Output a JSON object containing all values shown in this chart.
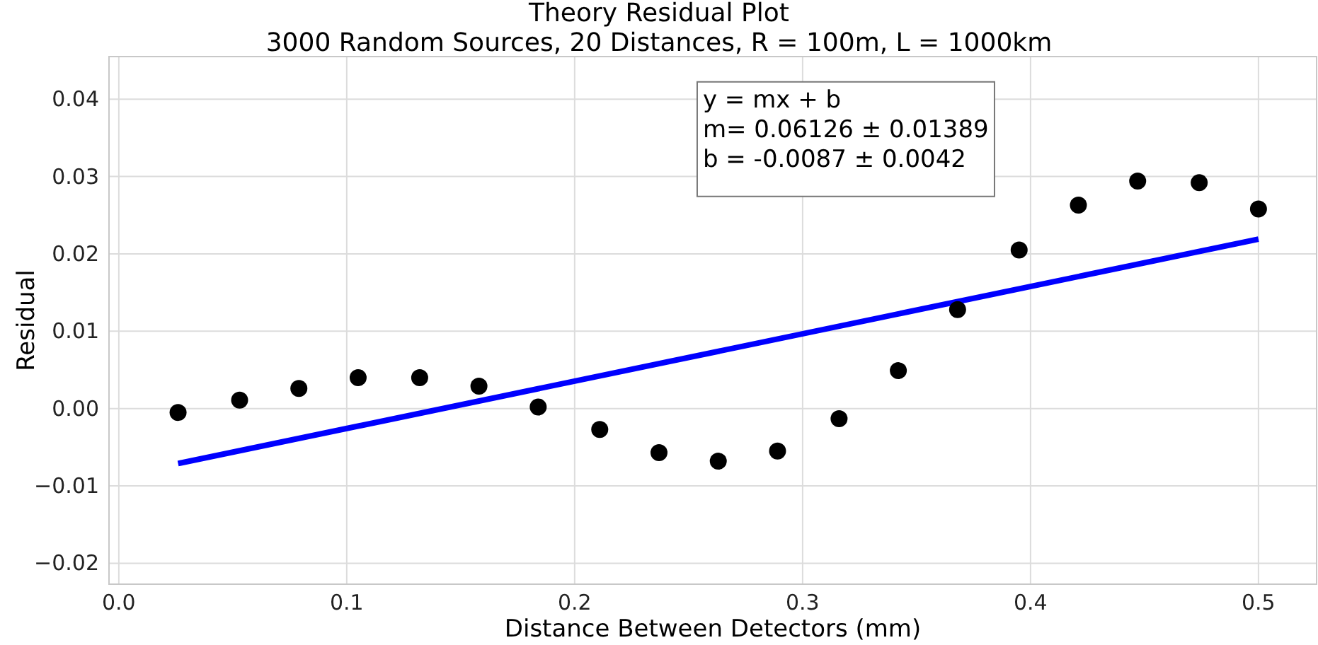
{
  "chart_data": {
    "type": "scatter",
    "title": "Theory Residual Plot",
    "subtitle": "3000 Random Sources, 20 Distances, R = 100m, L = 1000km",
    "xlabel": "Distance Between Detectors (mm)",
    "ylabel": "Residual",
    "xlim": [
      -0.0043,
      0.5255
    ],
    "ylim": [
      -0.0227,
      0.0455
    ],
    "xticks": [
      {
        "value": 0,
        "label": "0.0"
      },
      0.1,
      0.2,
      0.3,
      0.4,
      0.5
    ],
    "yticks": [
      {
        "value": -0.02,
        "label": "−0.02"
      },
      {
        "value": -0.01,
        "label": "−0.01"
      },
      {
        "value": 0,
        "label": "0.00"
      },
      {
        "value": 0.01,
        "label": "0.01"
      },
      {
        "value": 0.02,
        "label": "0.02"
      },
      {
        "value": 0.03,
        "label": "0.03"
      },
      {
        "value": 0.04,
        "label": "0.04"
      }
    ],
    "grid": true,
    "annotations": [
      "y = mx + b",
      "m= 0.06126 ± 0.01389",
      "b = -0.0087 ± 0.0042"
    ],
    "series": [
      {
        "marker": "circle",
        "color": "#000000",
        "x": [
          0.026,
          0.053,
          0.079,
          0.105,
          0.132,
          0.158,
          0.184,
          0.211,
          0.237,
          0.263,
          0.289,
          0.316,
          0.342,
          0.368,
          0.395,
          0.421,
          0.447,
          0.474,
          0.5
        ],
        "values": [
          -0.0005,
          0.0011,
          0.0026,
          0.004,
          0.004,
          0.0029,
          0.0002,
          -0.0027,
          -0.0057,
          -0.0068,
          -0.0055,
          -0.0013,
          0.0049,
          0.0128,
          0.0205,
          0.0263,
          0.0294,
          0.0292,
          0.0258
        ]
      },
      {
        "type": "line",
        "color": "#0000ff",
        "x": [
          0.026,
          0.5
        ],
        "values": [
          -0.0071,
          0.0219
        ]
      }
    ]
  }
}
